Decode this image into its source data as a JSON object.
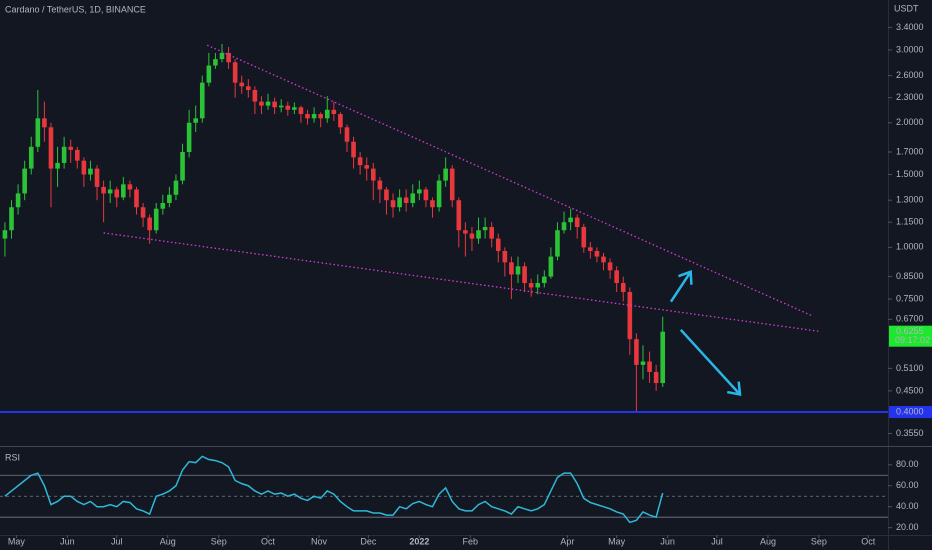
{
  "chart_data": [
    {
      "type": "candlestick",
      "title": "Cardano / TetherUS, 1D, BINANCE",
      "axis_label": "USDT",
      "log_scale": true,
      "grid": false,
      "up_color": "#2bc237",
      "down_color": "#e8383d",
      "x": [
        -7,
        -3,
        1,
        5,
        9,
        13,
        17,
        21,
        25,
        29,
        33,
        37,
        41,
        45,
        49,
        53,
        57,
        61,
        65,
        69,
        73,
        77,
        81,
        85,
        89,
        93,
        97,
        101,
        105,
        109,
        113,
        117,
        121,
        125,
        129,
        133,
        137,
        141,
        145,
        149,
        153,
        157,
        161,
        165,
        169,
        173,
        177,
        181,
        185,
        189,
        193,
        197,
        201,
        205,
        209,
        213,
        217,
        221,
        225,
        229,
        233,
        237,
        241,
        245,
        249,
        253,
        257,
        261,
        265,
        269,
        273,
        277,
        281,
        285,
        289,
        293,
        297,
        301,
        305,
        309,
        313,
        317,
        321,
        325,
        329,
        333,
        337,
        341,
        345,
        349,
        353,
        357,
        361,
        365,
        369,
        373,
        377,
        381,
        385,
        389,
        393
      ],
      "open": [
        1.05,
        1.1,
        1.25,
        1.35,
        1.55,
        1.75,
        2.05,
        1.95,
        1.55,
        1.6,
        1.75,
        1.72,
        1.62,
        1.5,
        1.55,
        1.4,
        1.35,
        1.38,
        1.32,
        1.42,
        1.38,
        1.25,
        1.18,
        1.1,
        1.24,
        1.28,
        1.34,
        1.45,
        1.7,
        2.0,
        2.05,
        2.5,
        2.75,
        2.85,
        2.95,
        2.8,
        2.5,
        2.45,
        2.4,
        2.25,
        2.2,
        2.25,
        2.18,
        2.2,
        2.15,
        2.18,
        2.1,
        2.05,
        2.1,
        2.05,
        2.15,
        2.1,
        1.95,
        1.8,
        1.65,
        1.58,
        1.55,
        1.45,
        1.38,
        1.3,
        1.25,
        1.32,
        1.28,
        1.35,
        1.38,
        1.3,
        1.25,
        1.45,
        1.55,
        1.3,
        1.1,
        1.08,
        1.05,
        1.1,
        1.12,
        1.05,
        0.98,
        0.92,
        0.86,
        0.9,
        0.82,
        0.8,
        0.82,
        0.85,
        0.95,
        1.1,
        1.15,
        1.18,
        1.12,
        1.0,
        0.98,
        0.95,
        0.92,
        0.88,
        0.82,
        0.78,
        0.6,
        0.52,
        0.53,
        0.5,
        0.47
      ],
      "high": [
        1.15,
        1.3,
        1.42,
        1.62,
        1.85,
        2.4,
        2.25,
        2.0,
        1.75,
        1.85,
        1.82,
        1.75,
        1.65,
        1.62,
        1.58,
        1.45,
        1.45,
        1.4,
        1.48,
        1.45,
        1.4,
        1.28,
        1.2,
        1.28,
        1.34,
        1.4,
        1.5,
        1.78,
        2.15,
        2.2,
        2.6,
        2.95,
        2.95,
        3.1,
        3.05,
        2.85,
        2.6,
        2.55,
        2.45,
        2.32,
        2.35,
        2.3,
        2.28,
        2.25,
        2.24,
        2.2,
        2.15,
        2.18,
        2.12,
        2.32,
        2.25,
        2.12,
        1.98,
        1.85,
        1.7,
        1.65,
        1.6,
        1.48,
        1.4,
        1.35,
        1.38,
        1.38,
        1.42,
        1.45,
        1.4,
        1.32,
        1.5,
        1.65,
        1.58,
        1.32,
        1.15,
        1.12,
        1.18,
        1.18,
        1.15,
        1.08,
        1.0,
        0.95,
        0.95,
        0.92,
        0.84,
        0.86,
        0.88,
        1.0,
        1.15,
        1.22,
        1.24,
        1.2,
        1.14,
        1.03,
        1.0,
        0.97,
        0.94,
        0.9,
        0.85,
        0.8,
        0.62,
        0.58,
        0.56,
        0.52,
        0.68
      ],
      "low": [
        0.95,
        1.05,
        1.2,
        1.3,
        1.5,
        1.7,
        1.8,
        1.25,
        1.4,
        1.55,
        1.6,
        1.55,
        1.4,
        1.45,
        1.3,
        1.15,
        1.28,
        1.25,
        1.3,
        1.32,
        1.2,
        1.12,
        1.02,
        1.08,
        1.2,
        1.25,
        1.3,
        1.42,
        1.65,
        1.9,
        2.0,
        2.45,
        2.7,
        2.8,
        2.7,
        2.3,
        2.35,
        2.3,
        2.1,
        2.1,
        2.15,
        2.1,
        2.12,
        2.08,
        2.1,
        2.0,
        1.98,
        2.0,
        1.95,
        2.0,
        2.02,
        1.88,
        1.7,
        1.55,
        1.5,
        1.45,
        1.3,
        1.28,
        1.2,
        1.18,
        1.22,
        1.22,
        1.25,
        1.3,
        1.25,
        1.18,
        1.22,
        1.4,
        1.25,
        1.0,
        0.95,
        0.98,
        1.02,
        1.05,
        1.0,
        0.92,
        0.85,
        0.75,
        0.82,
        0.78,
        0.76,
        0.77,
        0.8,
        0.84,
        0.93,
        1.08,
        1.1,
        1.05,
        0.97,
        0.94,
        0.92,
        0.88,
        0.84,
        0.78,
        0.74,
        0.55,
        0.4,
        0.48,
        0.47,
        0.45,
        0.46
      ],
      "close": [
        1.1,
        1.25,
        1.35,
        1.55,
        1.75,
        2.05,
        1.95,
        1.55,
        1.6,
        1.75,
        1.72,
        1.62,
        1.5,
        1.55,
        1.4,
        1.35,
        1.38,
        1.32,
        1.42,
        1.38,
        1.25,
        1.18,
        1.1,
        1.24,
        1.28,
        1.34,
        1.45,
        1.7,
        2.0,
        2.05,
        2.5,
        2.75,
        2.85,
        2.95,
        2.8,
        2.5,
        2.45,
        2.4,
        2.25,
        2.2,
        2.25,
        2.18,
        2.2,
        2.15,
        2.18,
        2.1,
        2.05,
        2.1,
        2.05,
        2.15,
        2.1,
        1.95,
        1.8,
        1.65,
        1.58,
        1.55,
        1.45,
        1.38,
        1.3,
        1.25,
        1.32,
        1.28,
        1.35,
        1.38,
        1.3,
        1.25,
        1.45,
        1.55,
        1.3,
        1.1,
        1.08,
        1.05,
        1.1,
        1.12,
        1.05,
        0.98,
        0.92,
        0.86,
        0.9,
        0.82,
        0.8,
        0.82,
        0.85,
        0.95,
        1.1,
        1.15,
        1.18,
        1.12,
        1.0,
        0.98,
        0.95,
        0.92,
        0.88,
        0.82,
        0.78,
        0.6,
        0.52,
        0.53,
        0.5,
        0.47,
        0.6255
      ],
      "xlim": [
        -10,
        530
      ],
      "ylim": [
        0.333,
        3.96
      ],
      "yticks": [
        {
          "value": 3.4,
          "label": "3.4000"
        },
        {
          "value": 3.0,
          "label": "3.0000"
        },
        {
          "value": 2.6,
          "label": "2.6000"
        },
        {
          "value": 2.3,
          "label": "2.3000"
        },
        {
          "value": 2.0,
          "label": "2.0000"
        },
        {
          "value": 1.7,
          "label": "1.7000"
        },
        {
          "value": 1.5,
          "label": "1.5000"
        },
        {
          "value": 1.3,
          "label": "1.3000"
        },
        {
          "value": 1.15,
          "label": "1.1500"
        },
        {
          "value": 1.0,
          "label": "1.0000"
        },
        {
          "value": 0.85,
          "label": "0.8500"
        },
        {
          "value": 0.75,
          "label": "0.7500"
        },
        {
          "value": 0.67,
          "label": "0.6700"
        },
        {
          "value": 0.51,
          "label": "0.5100"
        },
        {
          "value": 0.45,
          "label": "0.4500"
        },
        {
          "value": 0.355,
          "label": "0.3550"
        }
      ],
      "xticks": [
        {
          "value": 0,
          "label": "May"
        },
        {
          "value": 31,
          "label": "Jun"
        },
        {
          "value": 61,
          "label": "Jul"
        },
        {
          "value": 92,
          "label": "Aug"
        },
        {
          "value": 123,
          "label": "Sep"
        },
        {
          "value": 153,
          "label": "Oct"
        },
        {
          "value": 184,
          "label": "Nov"
        },
        {
          "value": 214,
          "label": "Dec"
        },
        {
          "value": 245,
          "label": "2022"
        },
        {
          "value": 276,
          "label": "Feb"
        },
        {
          "value": 335,
          "label": "Apr"
        },
        {
          "value": 365,
          "label": "May"
        },
        {
          "value": 396,
          "label": "Jun"
        },
        {
          "value": 426,
          "label": "Jul"
        },
        {
          "value": 457,
          "label": "Aug"
        },
        {
          "value": 488,
          "label": "Sep"
        },
        {
          "value": 518,
          "label": "Oct"
        }
      ],
      "last_price": 0.6255,
      "countdown": "09:17:02",
      "last_price_color": "#1ee82e",
      "hline": {
        "value": 0.4,
        "label": "0.4000",
        "color": "#2433f0"
      },
      "trendlines": [
        {
          "x": [
            116,
            484
          ],
          "y": [
            3.08,
            0.683
          ]
        },
        {
          "x": [
            53,
            489
          ],
          "y": [
            1.084,
            0.626
          ]
        }
      ],
      "trendline_color": "#d83ad8",
      "arrows": [
        {
          "x": [
            398,
            410
          ],
          "y": [
            0.739,
            0.873
          ]
        },
        {
          "x": [
            404,
            440
          ],
          "y": [
            0.632,
            0.441
          ]
        }
      ],
      "arrow_color": "#29b6e8"
    },
    {
      "type": "line",
      "title": "RSI",
      "color": "#2eb8d8",
      "values": [
        50,
        55,
        60,
        65,
        70,
        72,
        60,
        42,
        45,
        50,
        50,
        45,
        42,
        45,
        40,
        40,
        42,
        40,
        45,
        44,
        38,
        36,
        33,
        50,
        52,
        55,
        60,
        75,
        83,
        82,
        88,
        85,
        84,
        82,
        78,
        65,
        62,
        60,
        55,
        52,
        55,
        52,
        53,
        50,
        52,
        48,
        46,
        50,
        48,
        55,
        52,
        45,
        40,
        36,
        36,
        36,
        34,
        34,
        32,
        32,
        40,
        38,
        43,
        45,
        42,
        40,
        52,
        58,
        45,
        38,
        36,
        36,
        42,
        45,
        40,
        38,
        36,
        33,
        40,
        38,
        36,
        38,
        42,
        55,
        68,
        72,
        72,
        62,
        48,
        44,
        42,
        40,
        38,
        35,
        33,
        25,
        27,
        35,
        32,
        30,
        53
      ],
      "ylim": [
        13,
        96
      ],
      "yticks": [
        {
          "value": 80,
          "label": "80.00"
        },
        {
          "value": 60,
          "label": "60.00"
        },
        {
          "value": 40,
          "label": "40.00"
        },
        {
          "value": 20,
          "label": "20.00"
        }
      ],
      "bands": [
        30,
        70
      ],
      "midline": 50
    }
  ]
}
